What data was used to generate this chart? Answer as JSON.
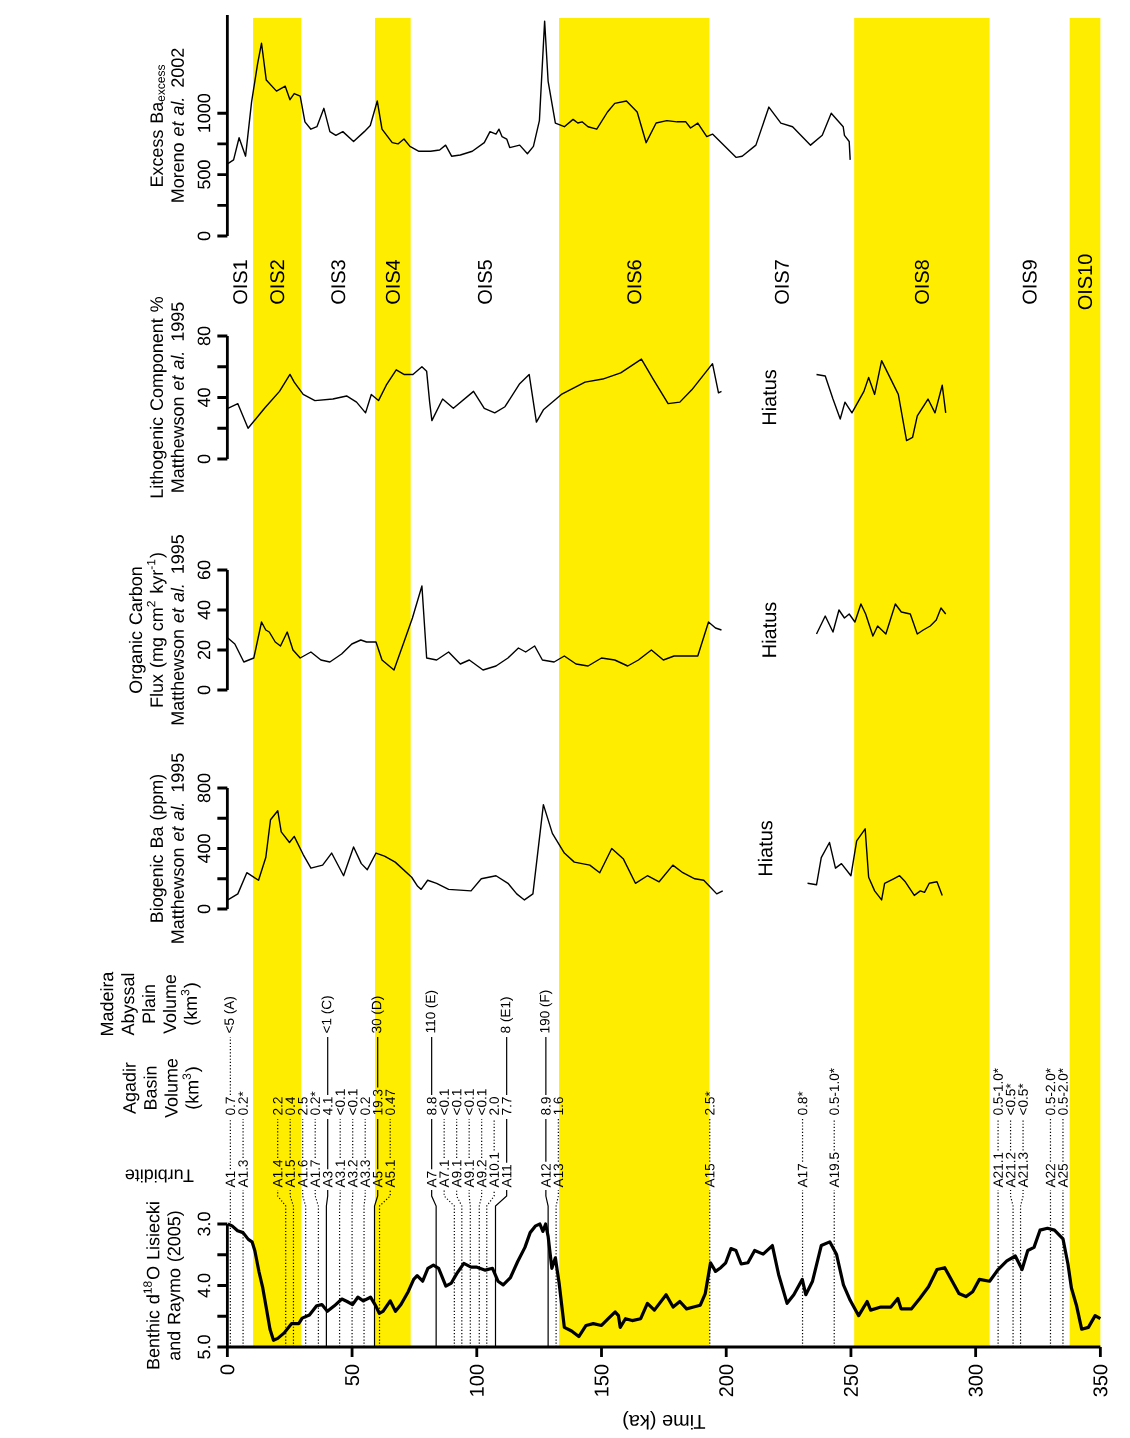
{
  "chart_data": [
    {
      "type": "line",
      "ylabel": "Benthic d$^{18}$O Lisiecki and Raymo (2005)",
      "xlabel": "Time (ka)",
      "annotations": [
        "Turbidite"
      ],
      "color": "#000000",
      "x": [
        0.2,
        1.9,
        4.1,
        6.3,
        8.4,
        9.9,
        11.0,
        12.7,
        14.2,
        15.6,
        17.1,
        18.5,
        20.2,
        22.8,
        25.7,
        28.6,
        30.0,
        32.9,
        35.8,
        37.9,
        40.1,
        42.9,
        45.9,
        48.0,
        50.2,
        52.3,
        54.5,
        57.4,
        59.5,
        60.9,
        62.4,
        65.3,
        67.4,
        69.6,
        72.5,
        74.7,
        76.1,
        78.3,
        80.4,
        82.6,
        84.7,
        87.6,
        89.8,
        91.9,
        94.8,
        97.7,
        99.8,
        103.4,
        106.3,
        108.5,
        110.6,
        113.5,
        116.4,
        119.3,
        121.4,
        123.6,
        125.3,
        126.5,
        127.6,
        128.6,
        130.1,
        131.5,
        133.0,
        135.1,
        138.0,
        140.9,
        143.8,
        146.7,
        150.0,
        152.7,
        155.5,
        156.8,
        157.5,
        159.6,
        162.3,
        165.7,
        168.4,
        171.2,
        175.9,
        178.7,
        181.4,
        184.1,
        186.9,
        189.6,
        191.6,
        193.7,
        195.7,
        197.8,
        199.8,
        201.9,
        203.9,
        206.0,
        208.7,
        211.4,
        214.8,
        218.5,
        221.0,
        224.4,
        227.1,
        230.5,
        231.9,
        234.6,
        238.1,
        241.5,
        244.2,
        247.0,
        249.7,
        253.1,
        256.5,
        257.9,
        262.0,
        266.0,
        268.8,
        270.1,
        274.2,
        277.6,
        281.1,
        284.5,
        287.6,
        290.6,
        293.3,
        296.1,
        298.8,
        301.5,
        305.6,
        309.0,
        312.5,
        315.9,
        318.6,
        320.9,
        323.4,
        325.8,
        328.8,
        331.6,
        335.0,
        337.0,
        338.4,
        340.4,
        342.5,
        345.2,
        347.9,
        350.0
      ],
      "values": [
        3.0,
        3.03,
        3.11,
        3.14,
        3.25,
        3.29,
        3.43,
        3.78,
        4.04,
        4.36,
        4.71,
        4.89,
        4.86,
        4.77,
        4.62,
        4.62,
        4.53,
        4.48,
        4.33,
        4.31,
        4.42,
        4.33,
        4.22,
        4.26,
        4.31,
        4.19,
        4.25,
        4.19,
        4.33,
        4.45,
        4.42,
        4.25,
        4.42,
        4.31,
        4.1,
        3.9,
        3.84,
        3.93,
        3.72,
        3.67,
        3.72,
        4.01,
        3.96,
        3.81,
        3.64,
        3.7,
        3.7,
        3.75,
        3.72,
        3.93,
        3.99,
        3.87,
        3.61,
        3.38,
        3.14,
        3.03,
        3.0,
        3.12,
        3.0,
        3.2,
        3.72,
        3.55,
        3.96,
        4.68,
        4.74,
        4.83,
        4.65,
        4.62,
        4.65,
        4.54,
        4.43,
        4.49,
        4.68,
        4.54,
        4.57,
        4.54,
        4.29,
        4.4,
        4.15,
        4.35,
        4.26,
        4.38,
        4.35,
        4.32,
        4.13,
        3.63,
        3.77,
        3.71,
        3.63,
        3.4,
        3.43,
        3.65,
        3.63,
        3.43,
        3.49,
        3.35,
        3.82,
        4.29,
        4.15,
        3.9,
        4.15,
        3.93,
        3.35,
        3.29,
        3.49,
        3.99,
        4.24,
        4.49,
        4.26,
        4.4,
        4.35,
        4.35,
        4.21,
        4.38,
        4.38,
        4.21,
        4.02,
        3.74,
        3.71,
        3.93,
        4.13,
        4.18,
        4.1,
        3.9,
        3.93,
        3.74,
        3.6,
        3.52,
        3.74,
        3.43,
        3.38,
        3.1,
        3.07,
        3.1,
        3.24,
        3.65,
        4.04,
        4.32,
        4.71,
        4.68,
        4.49,
        4.54
      ],
      "xlim": [
        0,
        350
      ],
      "xticks": [
        0,
        50,
        100,
        150,
        200,
        250,
        300,
        350
      ],
      "ylim": [
        5.0,
        3.0
      ],
      "yticks": [
        {
          "value": 3,
          "label": "3.0"
        },
        {
          "value": 3.5,
          "label": null
        },
        {
          "value": 4,
          "label": "4.0"
        },
        {
          "value": 4.5,
          "label": null
        },
        {
          "value": 5,
          "label": "5.0"
        }
      ],
      "bands": [
        {
          "axis": "x",
          "from": 10.3,
          "to": 29.7,
          "label": "OIS2",
          "color": "#ffed00"
        },
        {
          "axis": "x",
          "from": 59.2,
          "to": 73.5,
          "label": "OIS4",
          "color": "#ffed00"
        },
        {
          "axis": "x",
          "from": 133.0,
          "to": 193.3,
          "label": "OIS6",
          "color": "#ffed00"
        },
        {
          "axis": "x",
          "from": 251.3,
          "to": 305.6,
          "label": "OIS8",
          "color": "#ffed00"
        },
        {
          "axis": "x",
          "from": 337.7,
          "to": 350,
          "label": "OIS10",
          "color": "#ffed00"
        }
      ],
      "ref_lines": [
        {
          "axis": "x",
          "value": 1.2,
          "label": "A1",
          "line_style": "dotted"
        },
        {
          "axis": "x",
          "value": 6.3,
          "label": "A1.3",
          "line_style": "dotted"
        },
        {
          "axis": "x",
          "value": 23.4,
          "label": "A1.4",
          "line_style": "dotted"
        },
        {
          "axis": "x",
          "value": 26.5,
          "label": "A1.5",
          "line_style": "dotted"
        },
        {
          "axis": "x",
          "value": 31.4,
          "label": "A1.6",
          "line_style": "dotted"
        },
        {
          "axis": "x",
          "value": 36.5,
          "label": "A1.7",
          "line_style": "dotted"
        },
        {
          "axis": "x",
          "value": 39.7,
          "label": "A3",
          "line_style": "solid"
        },
        {
          "axis": "x",
          "value": 45.0,
          "label": "A3.1",
          "line_style": "dotted"
        },
        {
          "axis": "x",
          "value": 50.0,
          "label": "A3.2",
          "line_style": "dotted"
        },
        {
          "axis": "x",
          "value": 54.8,
          "label": "A3.3",
          "line_style": "dotted"
        },
        {
          "axis": "x",
          "value": 59.0,
          "label": "A5",
          "line_style": "solid"
        },
        {
          "axis": "x",
          "value": 61.0,
          "label": "A5.1",
          "line_style": "dotted"
        },
        {
          "axis": "x",
          "value": 83.7,
          "label": "A7",
          "line_style": "solid"
        },
        {
          "axis": "x",
          "value": 91.0,
          "label": "A7.1",
          "line_style": "dotted"
        },
        {
          "axis": "x",
          "value": 94.0,
          "label": "A9.1",
          "line_style": "dotted"
        },
        {
          "axis": "x",
          "value": 97.4,
          "label": "A9.1",
          "line_style": "dotted"
        },
        {
          "axis": "x",
          "value": 101.0,
          "label": "A9.2",
          "line_style": "dotted"
        },
        {
          "axis": "x",
          "value": 104.0,
          "label": "A10.1",
          "line_style": "dotted"
        },
        {
          "axis": "x",
          "value": 107.5,
          "label": "A11",
          "line_style": "solid"
        },
        {
          "axis": "x",
          "value": 128.6,
          "label": "A12",
          "line_style": "solid"
        },
        {
          "axis": "x",
          "value": 131.8,
          "label": "A13",
          "line_style": "dotted"
        },
        {
          "axis": "x",
          "value": 193.4,
          "label": "A15",
          "line_style": "dotted"
        },
        {
          "axis": "x",
          "value": 230.6,
          "label": "A17",
          "line_style": "dotted"
        },
        {
          "axis": "x",
          "value": 243.3,
          "label": "A19.5",
          "line_style": "dotted"
        },
        {
          "axis": "x",
          "value": 309.0,
          "label": "A21.1",
          "line_style": "dotted"
        },
        {
          "axis": "x",
          "value": 315.0,
          "label": "A21.2",
          "line_style": "dotted"
        },
        {
          "axis": "x",
          "value": 318.0,
          "label": "A21.3",
          "line_style": "dotted"
        },
        {
          "axis": "x",
          "value": 330.0,
          "label": "A22",
          "line_style": "dotted"
        },
        {
          "axis": "x",
          "value": 335.0,
          "label": "A25",
          "line_style": "dotted"
        }
      ]
    },
    {
      "type": "other",
      "title": "Agadir Basin Volume (km$^{3}$)",
      "annotations": [
        "0.7",
        "0.2*",
        "2.2",
        "0.4",
        "2.5",
        "0.2*",
        "4.1",
        "<0.1",
        "<0.1",
        "0.2",
        "19.3",
        "0.47",
        "8.8",
        "<0.1",
        "<0.1",
        "<0.1",
        "<0.1",
        "2.0",
        "7.7",
        "8.9",
        "1.6",
        "2.5*",
        "0.8*",
        "0.5-1.0*",
        "0.5-1.0*",
        "<0.5*",
        "<0.5*",
        "0.5-2.0*",
        "0.5-2.0*"
      ]
    },
    {
      "type": "other",
      "title": "Madeira Abyssal Plain Volume (km$^{3}$)",
      "annotations": [
        "<5 (A)",
        "<1 (C)",
        "30 (D)",
        "110 (E)",
        "8 (E1)",
        "190 (F)"
      ]
    },
    {
      "type": "line",
      "ylabel": "Biogenic Ba (ppm) Matthewson *et al.* 1995",
      "annotations": [
        "Hiatus"
      ],
      "color": "#000000",
      "tick_labels": "y",
      "x": [
        0.2,
        4.2,
        7.8,
        12.5,
        15.4,
        17.3,
        20.2,
        21.6,
        24.9,
        26.8,
        30.4,
        33.5,
        38.2,
        41.8,
        46.6,
        50.6,
        53.7,
        56.1,
        59.6,
        63.0,
        67.3,
        73.9,
        76.3,
        77.7,
        80.3,
        83.9,
        88.7,
        97.7,
        101.8,
        107.7,
        112.5,
        116.0,
        119.1,
        122.5,
        126.7,
        130.3,
        135.1,
        139.1,
        145.3,
        149.3,
        154.1,
        158.8,
        163.6,
        168.4,
        173.1,
        178.6,
        182.6,
        187.4,
        191.0,
        193.3,
        196.2,
        198.6,
        215,
        232.6,
        236.2,
        238.1,
        241.4,
        243.8,
        246.2,
        250.0,
        252.3,
        255.7,
        257.1,
        259.5,
        262.3,
        263.5,
        267.1,
        269.5,
        271.8,
        275.4,
        277.8,
        279.5,
        281.4,
        284.5,
        286.6
      ],
      "values": [
        60,
        100,
        240,
        190,
        340,
        590,
        650,
        510,
        440,
        480,
        360,
        270,
        290,
        370,
        220,
        410,
        300,
        260,
        370,
        350,
        310,
        210,
        150,
        130,
        190,
        170,
        130,
        120,
        200,
        220,
        170,
        100,
        60,
        100,
        690,
        500,
        370,
        310,
        290,
        240,
        400,
        330,
        170,
        220,
        180,
        290,
        240,
        200,
        190,
        150,
        100,
        120,
        null,
        170,
        160,
        340,
        440,
        270,
        300,
        220,
        450,
        530,
        210,
        120,
        60,
        170,
        200,
        220,
        180,
        90,
        120,
        110,
        170,
        180,
        90
      ],
      "xlim": [
        0,
        350
      ],
      "ylim": [
        0,
        800
      ],
      "yticks": [
        0,
        {
          "value": 200,
          "label": null
        },
        400,
        {
          "value": 600,
          "label": null
        },
        800
      ]
    },
    {
      "type": "line",
      "ylabel": "Organic Carbon Flux (mg cm$^{2}$ kyr$^{-1}$) Matthewson *et al.* 1995",
      "annotations": [
        "Hiatus"
      ],
      "color": "#000000",
      "tick_labels": "y",
      "x": [
        0.2,
        3.0,
        6.6,
        10.6,
        13.7,
        15.4,
        16.8,
        19.2,
        21.3,
        24.0,
        26.3,
        29.2,
        33.5,
        37.5,
        41.1,
        45.8,
        49.9,
        53.5,
        55.8,
        59.6,
        62.0,
        66.8,
        70.8,
        74.2,
        78.0,
        79.9,
        83.9,
        88.7,
        93.4,
        97.0,
        102.5,
        107.7,
        112.5,
        116.7,
        119.6,
        123.2,
        126.3,
        131.0,
        135.1,
        139.8,
        144.6,
        150.0,
        155.3,
        160.5,
        164.8,
        170.0,
        174.8,
        179.1,
        188.6,
        192.9,
        195.7,
        198.1,
        217,
        236.2,
        239.7,
        242.8,
        245.2,
        247.4,
        249.3,
        251.6,
        254.0,
        255.9,
        258.8,
        260.7,
        264.0,
        267.8,
        270.2,
        273.8,
        276.6,
        279.0,
        281.8,
        284.2,
        286.1,
        288.0
      ],
      "values": [
        26,
        23,
        14,
        16,
        34,
        30,
        29,
        24,
        22,
        29,
        20,
        16,
        19,
        15,
        14,
        18,
        23,
        25,
        24,
        24,
        15,
        10,
        24,
        36,
        52,
        16,
        15,
        19,
        13,
        15,
        10,
        12,
        16,
        21,
        19,
        22,
        15,
        14,
        17,
        13,
        12,
        16,
        15,
        12,
        15,
        20,
        15,
        17,
        17,
        34,
        31,
        30,
        null,
        28,
        37,
        29,
        40,
        36,
        38,
        34,
        43,
        38,
        27,
        32,
        28,
        43,
        39,
        38,
        28,
        30,
        32,
        35,
        41,
        38
      ],
      "xlim": [
        0,
        350
      ],
      "ylim": [
        0,
        60
      ],
      "yticks": [
        0,
        20,
        40,
        60
      ]
    },
    {
      "type": "line",
      "ylabel": "Lithogenic Component % Matthewson *et al.* 1995",
      "annotations": [
        "Hiatus"
      ],
      "color": "#000000",
      "tick_labels": "y",
      "x": [
        0.2,
        4.2,
        8.3,
        14.9,
        20.9,
        25.1,
        26.8,
        30.4,
        35.1,
        42.3,
        47.8,
        51.8,
        55.4,
        57.7,
        60.6,
        63.7,
        67.7,
        70.8,
        74.4,
        78.0,
        79.9,
        81.1,
        82.0,
        86.3,
        90.6,
        98.7,
        103.0,
        107.2,
        111.3,
        117.2,
        121.0,
        123.9,
        126.7,
        133.9,
        143.4,
        150.5,
        157.7,
        166.0,
        170.7,
        176.7,
        181.4,
        186.2,
        194.5,
        196.9,
        198.1,
        217,
        236.2,
        239.7,
        242.8,
        245.7,
        247.6,
        250.4,
        255.2,
        257.1,
        259.5,
        262.3,
        269.0,
        272.3,
        274.7,
        276.6,
        280.9,
        283.7,
        286.6,
        288.0
      ],
      "values": [
        33,
        36,
        20,
        33,
        44,
        55,
        50,
        42,
        38,
        39,
        41,
        37,
        30,
        42,
        38,
        48,
        58,
        55,
        55,
        60,
        57,
        37,
        25,
        39,
        33,
        44,
        33,
        30,
        34,
        49,
        55,
        24,
        32,
        42,
        50,
        52,
        56,
        65,
        52,
        36,
        37,
        45,
        62,
        43,
        44,
        null,
        55,
        54,
        39,
        26,
        37,
        30,
        44,
        53,
        42,
        64,
        42,
        12,
        14,
        28,
        39,
        30,
        48,
        30
      ],
      "xlim": [
        0,
        350
      ],
      "ylim": [
        0,
        80
      ],
      "yticks": [
        0,
        {
          "value": 20,
          "label": null
        },
        40,
        {
          "value": 60,
          "label": null
        },
        80
      ]
    },
    {
      "type": "line",
      "ylabel": "Excess Ba$_{excess}$ Moreno *et al.* 2002",
      "annotations": [
        "OIS1",
        "OIS3",
        "OIS5",
        "OIS7",
        "OIS9"
      ],
      "color": "#000000",
      "tick_labels": "y",
      "x": [
        0.2,
        2.5,
        4.7,
        7.3,
        9.7,
        12.1,
        13.7,
        15.6,
        19.7,
        23.2,
        25.1,
        26.8,
        29.2,
        31.1,
        33.5,
        35.9,
        38.7,
        41.1,
        43.5,
        46.3,
        50.6,
        54.9,
        57.3,
        60.1,
        62.0,
        66.1,
        68.4,
        70.8,
        73.2,
        76.8,
        81.5,
        85.1,
        87.5,
        89.9,
        93.4,
        98.2,
        103.0,
        105.3,
        107.7,
        108.9,
        110.1,
        112.0,
        113.2,
        117.2,
        120.3,
        122.7,
        125.1,
        127.2,
        128.6,
        131.5,
        135.1,
        138.6,
        140.5,
        142.2,
        144.6,
        148.1,
        152.4,
        155.3,
        160.0,
        164.3,
        167.9,
        171.9,
        176.2,
        180.3,
        183.8,
        185.7,
        188.6,
        192.2,
        194.5,
        204.0,
        206.4,
        211.9,
        217.1,
        221.9,
        226.6,
        233.8,
        238.5,
        242.1,
        246.9,
        247.4,
        249.3,
        249.7
      ],
      "values": [
        590,
        620,
        800,
        650,
        1090,
        1400,
        1570,
        1270,
        1180,
        1220,
        1110,
        1160,
        1140,
        930,
        870,
        890,
        1040,
        850,
        820,
        850,
        770,
        850,
        900,
        1100,
        870,
        760,
        750,
        790,
        730,
        690,
        690,
        700,
        740,
        650,
        660,
        690,
        760,
        850,
        830,
        870,
        810,
        790,
        720,
        740,
        670,
        730,
        940,
        1750,
        1260,
        920,
        890,
        950,
        920,
        930,
        890,
        870,
        1010,
        1080,
        1100,
        1010,
        760,
        920,
        940,
        930,
        930,
        880,
        920,
        810,
        830,
        640,
        650,
        740,
        1050,
        920,
        890,
        740,
        820,
        1000,
        890,
        820,
        770,
        620
      ],
      "xlim": [
        0,
        350
      ],
      "ylim": [
        0,
        1800
      ],
      "yticks": [
        0,
        {
          "value": 250,
          "label": null
        },
        500,
        {
          "value": 750,
          "label": null
        },
        1000
      ]
    }
  ]
}
